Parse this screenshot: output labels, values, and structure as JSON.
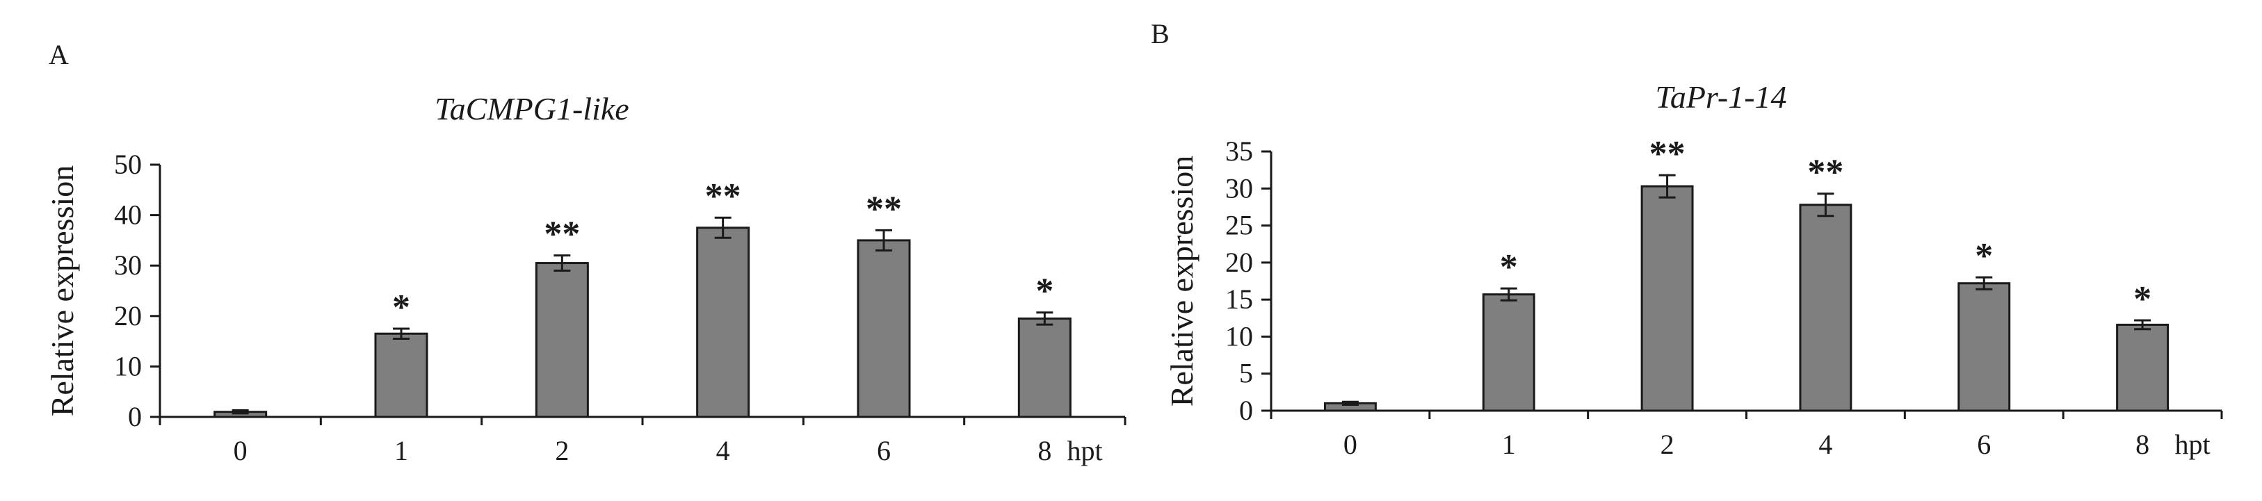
{
  "chart_data": [
    {
      "panel": "A",
      "type": "bar",
      "title": "TaCMPG1-like",
      "xlabel": "hpt",
      "ylabel": "Relative expression",
      "categories": [
        "0",
        "1",
        "2",
        "4",
        "6",
        "8"
      ],
      "values": [
        1,
        16.5,
        30.5,
        37.5,
        35,
        19.5
      ],
      "errors": [
        0.3,
        1.0,
        1.5,
        2.0,
        2.0,
        1.2
      ],
      "significance": [
        "",
        "*",
        "**",
        "**",
        "**",
        "*"
      ],
      "ylim": [
        0,
        50
      ],
      "yticks": [
        0,
        10,
        20,
        30,
        40,
        50
      ],
      "grid": false,
      "bar_color": "#7f7f7f"
    },
    {
      "panel": "B",
      "type": "bar",
      "title": "TaPr-1-14",
      "xlabel": "hpt",
      "ylabel": "Relative expression",
      "categories": [
        "0",
        "1",
        "2",
        "4",
        "6",
        "8"
      ],
      "values": [
        1,
        15.7,
        30.3,
        27.8,
        17.2,
        11.6
      ],
      "errors": [
        0.2,
        0.8,
        1.5,
        1.5,
        0.8,
        0.6
      ],
      "significance": [
        "",
        "*",
        "**",
        "**",
        "*",
        "*"
      ],
      "ylim": [
        0,
        35
      ],
      "yticks": [
        0,
        5,
        10,
        15,
        20,
        25,
        30,
        35
      ],
      "grid": false,
      "bar_color": "#7f7f7f"
    }
  ]
}
